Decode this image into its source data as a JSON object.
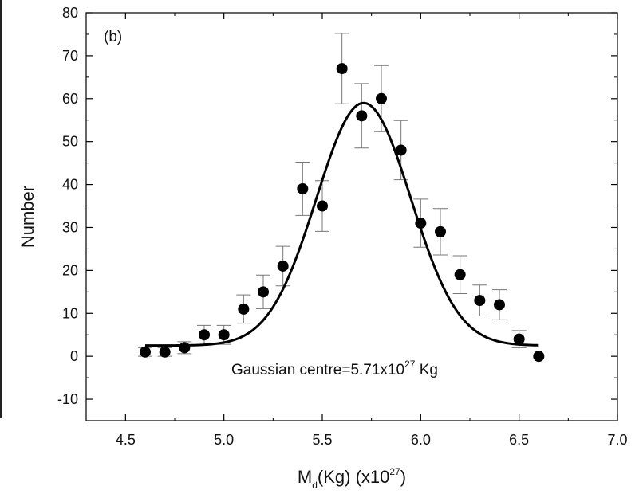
{
  "chart_data": {
    "type": "scatter",
    "panel_label": "(b)",
    "xlabel": {
      "main": "M",
      "sub": "d",
      "rest": "(Kg) (x10",
      "sup": "27",
      "close": ")"
    },
    "ylabel": "Number",
    "xlim": [
      4.3,
      7.0
    ],
    "ylim": [
      -15,
      80
    ],
    "x_ticks": [
      "4.5",
      "5.0",
      "5.5",
      "6.0",
      "6.5",
      "7.0"
    ],
    "y_ticks": [
      "-10",
      "0",
      "10",
      "20",
      "30",
      "40",
      "50",
      "60",
      "70",
      "80"
    ],
    "grid": false,
    "points": [
      {
        "x": 4.6,
        "y": 1,
        "err": 1
      },
      {
        "x": 4.7,
        "y": 1,
        "err": 1
      },
      {
        "x": 4.8,
        "y": 2,
        "err": 1.4
      },
      {
        "x": 4.9,
        "y": 5,
        "err": 2.2
      },
      {
        "x": 5.0,
        "y": 5,
        "err": 2.2
      },
      {
        "x": 5.1,
        "y": 11,
        "err": 3.3
      },
      {
        "x": 5.2,
        "y": 15,
        "err": 3.9
      },
      {
        "x": 5.3,
        "y": 21,
        "err": 4.6
      },
      {
        "x": 5.4,
        "y": 39,
        "err": 6.2
      },
      {
        "x": 5.5,
        "y": 35,
        "err": 5.9
      },
      {
        "x": 5.6,
        "y": 67,
        "err": 8.2
      },
      {
        "x": 5.7,
        "y": 56,
        "err": 7.5
      },
      {
        "x": 5.8,
        "y": 60,
        "err": 7.7
      },
      {
        "x": 5.9,
        "y": 48,
        "err": 6.9
      },
      {
        "x": 6.0,
        "y": 31,
        "err": 5.6
      },
      {
        "x": 6.1,
        "y": 29,
        "err": 5.4
      },
      {
        "x": 6.2,
        "y": 19,
        "err": 4.4
      },
      {
        "x": 6.3,
        "y": 13,
        "err": 3.6
      },
      {
        "x": 6.4,
        "y": 12,
        "err": 3.5
      },
      {
        "x": 6.5,
        "y": 4,
        "err": 2
      },
      {
        "x": 6.6,
        "y": 0,
        "err": 0
      }
    ],
    "fit": {
      "type": "gaussian",
      "center": 5.71,
      "sigma": 0.24,
      "amplitude": 56.5,
      "offset": 2.5,
      "x_range": [
        4.6,
        6.6
      ]
    },
    "annotation": {
      "main": "Gaussian centre=5.71x10",
      "sup": "27",
      "rest": " Kg"
    },
    "colors": {
      "points": "#000000",
      "error_bars": "#777777",
      "fit": "#000000",
      "axes": "#000000"
    }
  }
}
